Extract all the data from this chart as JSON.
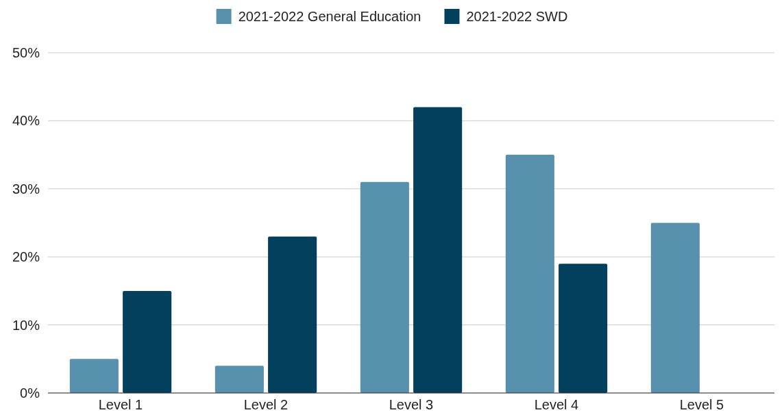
{
  "chart_data": {
    "type": "bar",
    "categories": [
      "Level 1",
      "Level 2",
      "Level 3",
      "Level 4",
      "Level 5"
    ],
    "series": [
      {
        "name": "2021-2022 General Education",
        "color": "#5891ad",
        "values": [
          5,
          4,
          31,
          35,
          25
        ]
      },
      {
        "name": "2021-2022 SWD",
        "color": "#03405e",
        "values": [
          15,
          23,
          42,
          19,
          0
        ]
      }
    ],
    "ylim": [
      0,
      50
    ],
    "yticks": [
      {
        "value": 0,
        "label": "0%"
      },
      {
        "value": 10,
        "label": "10%"
      },
      {
        "value": 20,
        "label": "20%"
      },
      {
        "value": 30,
        "label": "30%"
      },
      {
        "value": 40,
        "label": "40%"
      },
      {
        "value": 50,
        "label": "50%"
      }
    ],
    "grid": "y",
    "legend": "top"
  }
}
